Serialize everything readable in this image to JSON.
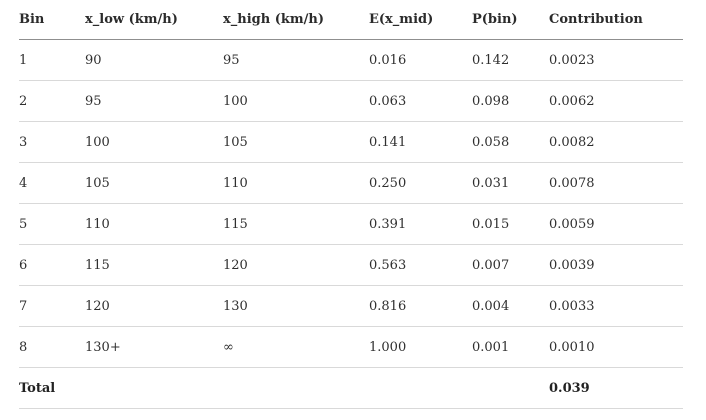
{
  "table": {
    "headers": [
      "Bin",
      "x_low (km/h)",
      "x_high (km/h)",
      "E(x_mid)",
      "P(bin)",
      "Contribution"
    ],
    "rows": [
      [
        "1",
        "90",
        "95",
        "0.016",
        "0.142",
        "0.0023"
      ],
      [
        "2",
        "95",
        "100",
        "0.063",
        "0.098",
        "0.0062"
      ],
      [
        "3",
        "100",
        "105",
        "0.141",
        "0.058",
        "0.0082"
      ],
      [
        "4",
        "105",
        "110",
        "0.250",
        "0.031",
        "0.0078"
      ],
      [
        "5",
        "110",
        "115",
        "0.391",
        "0.015",
        "0.0059"
      ],
      [
        "6",
        "115",
        "120",
        "0.563",
        "0.007",
        "0.0039"
      ],
      [
        "7",
        "120",
        "130",
        "0.816",
        "0.004",
        "0.0033"
      ],
      [
        "8",
        "130+",
        "∞",
        "1.000",
        "0.001",
        "0.0010"
      ]
    ],
    "total": {
      "label": "Total",
      "contribution": "0.039"
    }
  }
}
